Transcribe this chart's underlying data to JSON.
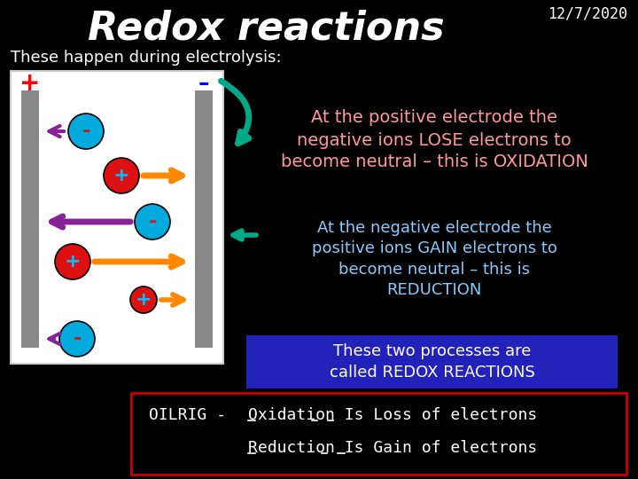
{
  "bg_color": "#000000",
  "title": "Redox reactions",
  "title_color": "#ffffff",
  "title_fontsize": 32,
  "date": "12/7/2020",
  "date_color": "#ffffff",
  "date_fontsize": 12,
  "subtitle": "These happen during electrolysis:",
  "subtitle_color": "#ffffff",
  "subtitle_fontsize": 13,
  "oxidation_text": "At the positive electrode the\nnegative ions LOSE electrons to\nbecome neutral – this is OXIDATION",
  "oxidation_color": "#ff9999",
  "oxidation_fontsize": 14,
  "reduction_text": "At the negative electrode the\npositive ions GAIN electrons to\nbecome neutral – this is\nREDUCTION",
  "reduction_color": "#88ccff",
  "reduction_fontsize": 13,
  "redox_box_text": "These two processes are\ncalled REDOX REACTIONS",
  "redox_box_color": "#ffffff",
  "redox_box_bg": "#2222bb",
  "redox_fontsize": 13,
  "oilrig_label": "OILRIG -",
  "oilrig_color": "#ffffff",
  "oilrig_fontsize": 13,
  "oxidation_def": "Oxidation Is Loss of electrons",
  "reduction_def": "Reduction Is Gain of electrons",
  "def_color": "#ffffff",
  "def_fontsize": 13,
  "box_border_color": "#cc0000",
  "green_color": "#00aa88",
  "purple_color": "#882299",
  "orange_color": "#ff8800",
  "electrode_color": "#888888",
  "pos_ion_face": "#dd1111",
  "pos_ion_sym": "#00bbff",
  "neg_ion_face": "#00aadd",
  "neg_ion_sym": "#dd1111"
}
